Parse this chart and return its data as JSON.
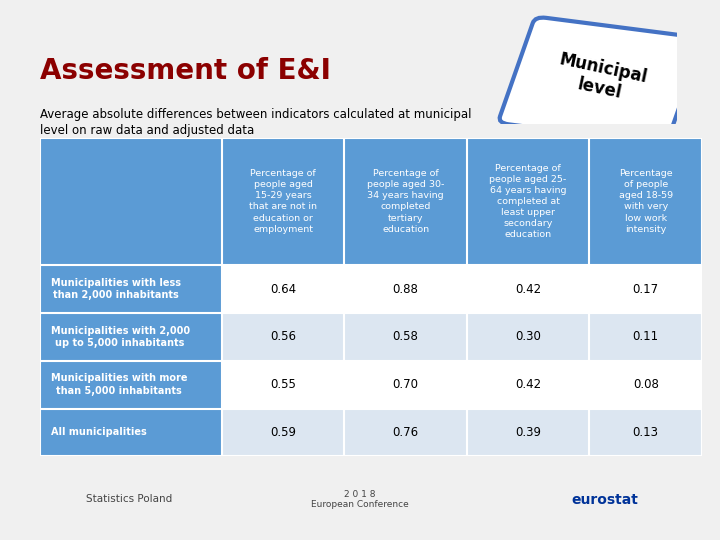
{
  "title": "Assessment of E&I",
  "subtitle_line1": "Average absolute differences between indicators calculated at municipal",
  "subtitle_line2": "level on raw data and adjusted data",
  "badge_text": "Municipal\nlevel",
  "col_headers": [
    "Percentage of\npeople aged\n15-29 years\nthat are not in\neducation or\nemployment",
    "Percentage of\npeople aged 30-\n34 years having\ncompleted\ntertiary\neducation",
    "Percentage of\npeople aged 25-\n64 years having\ncompleted at\nleast upper\nsecondary\neducation",
    "Percentage\nof people\naged 18-59\nwith very\nlow work\nintensity"
  ],
  "row_labels": [
    "Municipalities with less\nthan 2,000 inhabitants",
    "Municipalities with 2,000\nup to 5,000 inhabitants",
    "Municipalities with more\nthan 5,000 inhabitants",
    "All municipalities"
  ],
  "values": [
    [
      0.64,
      0.88,
      0.42,
      0.17
    ],
    [
      0.56,
      0.58,
      0.3,
      0.11
    ],
    [
      0.55,
      0.7,
      0.42,
      0.08
    ],
    [
      0.59,
      0.76,
      0.39,
      0.13
    ]
  ],
  "header_bg": "#5b9bd5",
  "row_label_bg": "#5b9bd5",
  "data_bg_light": "#dce6f1",
  "data_bg_white": "#ffffff",
  "title_color": "#8B0000",
  "subtitle_color": "#000000",
  "header_text_color": "#ffffff",
  "row_label_text_color": "#ffffff",
  "data_text_color": "#000000",
  "background_color": "#f0f0f0",
  "badge_bg": "#ffffff",
  "badge_border": "#4472c4",
  "badge_text_color": "#000000"
}
